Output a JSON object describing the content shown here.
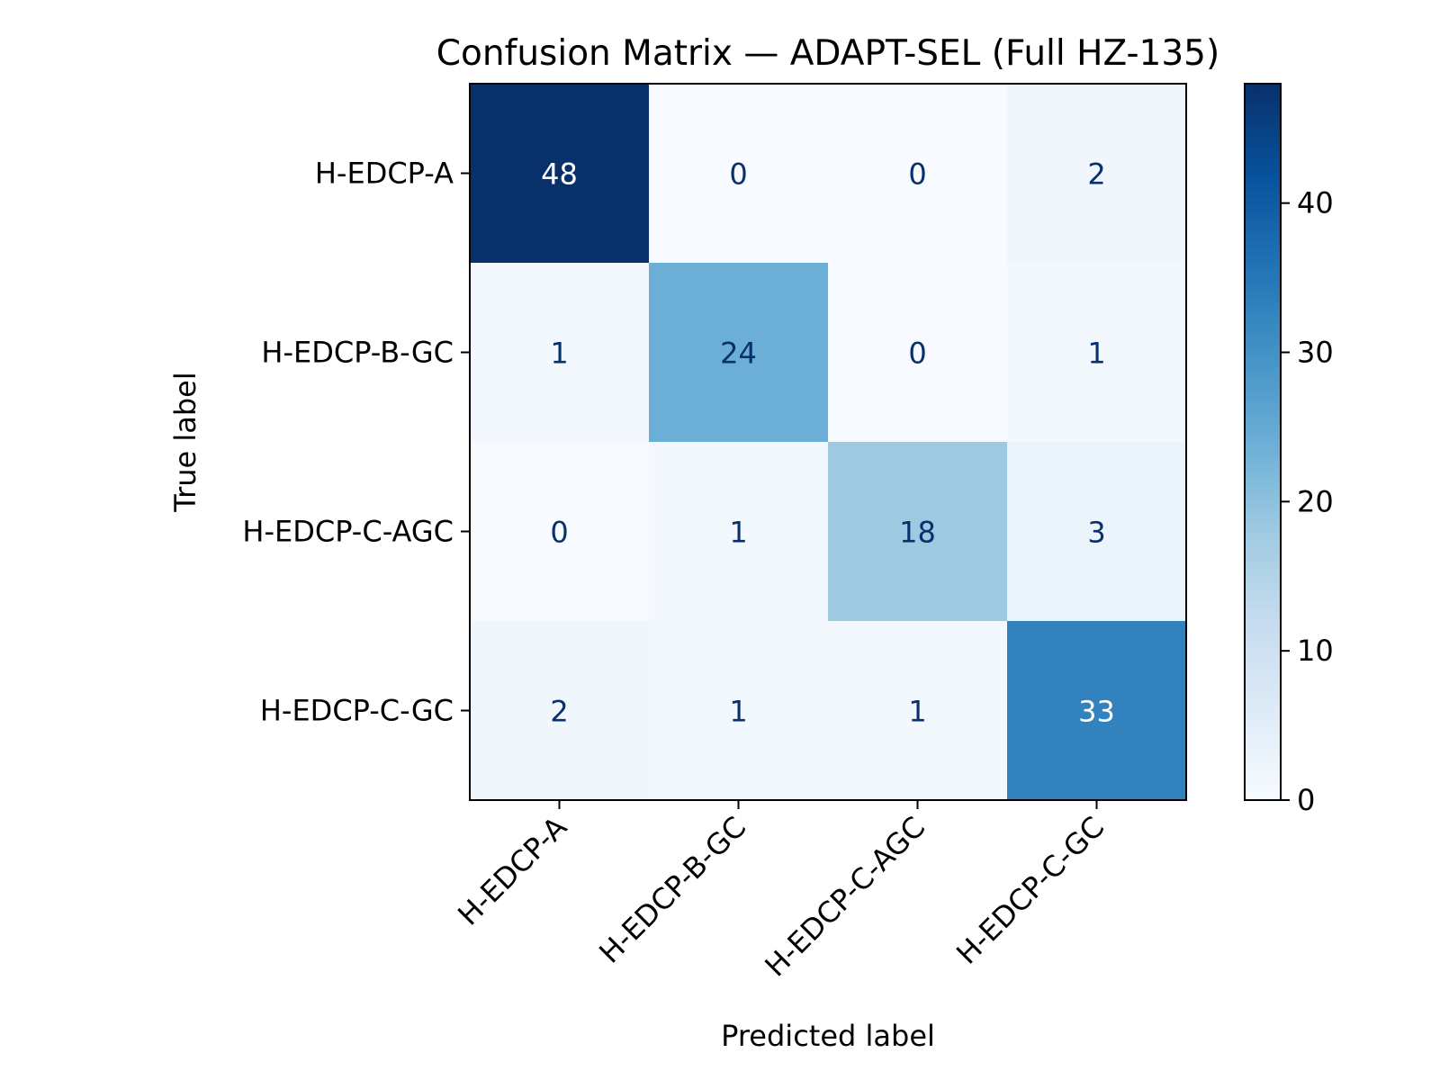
{
  "chart_data": {
    "type": "heatmap",
    "title": "Confusion Matrix — ADAPT-SEL (Full HZ-135)",
    "xlabel": "Predicted label",
    "ylabel": "True label",
    "x_categories": [
      "H-EDCP-A",
      "H-EDCP-B-GC",
      "H-EDCP-C-AGC",
      "H-EDCP-C-GC"
    ],
    "y_categories": [
      "H-EDCP-A",
      "H-EDCP-B-GC",
      "H-EDCP-C-AGC",
      "H-EDCP-C-GC"
    ],
    "values": [
      [
        48,
        0,
        0,
        2
      ],
      [
        1,
        24,
        0,
        1
      ],
      [
        0,
        1,
        18,
        3
      ],
      [
        2,
        1,
        1,
        33
      ]
    ],
    "colormap": "Blues",
    "colorbar": {
      "range": [
        0,
        48
      ],
      "ticks": [
        0,
        10,
        20,
        30,
        40
      ],
      "tick_labels": [
        "0",
        "10",
        "20",
        "30",
        "40"
      ]
    },
    "text_colors": {
      "dark": "#08306b",
      "light": "#ffffff"
    }
  }
}
